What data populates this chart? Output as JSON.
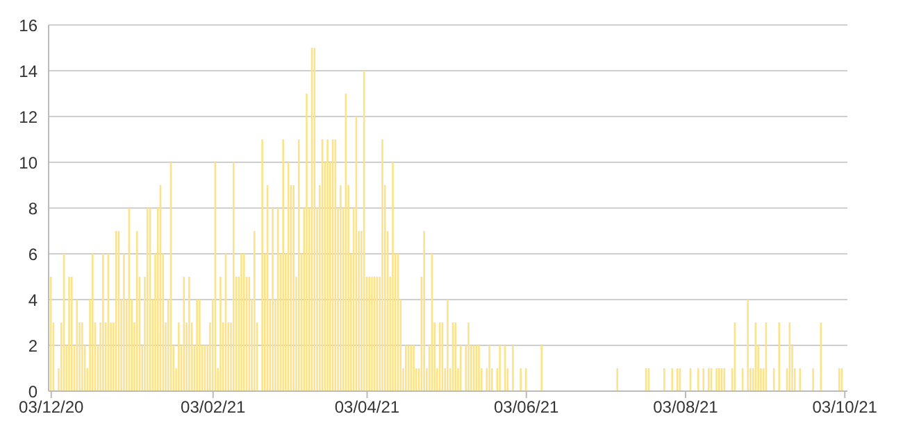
{
  "chart_data": {
    "type": "bar",
    "color": "#fce38a",
    "x": [
      "2020-12-03",
      "2020-12-04",
      "2020-12-05",
      "2020-12-06",
      "2020-12-07",
      "2020-12-08",
      "2020-12-09",
      "2020-12-10",
      "2020-12-11",
      "2020-12-12",
      "2020-12-13",
      "2020-12-14",
      "2020-12-15",
      "2020-12-16",
      "2020-12-17",
      "2020-12-18",
      "2020-12-19",
      "2020-12-20",
      "2020-12-21",
      "2020-12-22",
      "2020-12-23",
      "2020-12-24",
      "2020-12-25",
      "2020-12-26",
      "2020-12-27",
      "2020-12-28",
      "2020-12-29",
      "2020-12-30",
      "2020-12-31",
      "2021-01-01",
      "2021-01-02",
      "2021-01-03",
      "2021-01-04",
      "2021-01-05",
      "2021-01-06",
      "2021-01-07",
      "2021-01-08",
      "2021-01-09",
      "2021-01-10",
      "2021-01-11",
      "2021-01-12",
      "2021-01-13",
      "2021-01-14",
      "2021-01-15",
      "2021-01-16",
      "2021-01-17",
      "2021-01-18",
      "2021-01-19",
      "2021-01-20",
      "2021-01-21",
      "2021-01-22",
      "2021-01-23",
      "2021-01-24",
      "2021-01-25",
      "2021-01-26",
      "2021-01-27",
      "2021-01-28",
      "2021-01-29",
      "2021-01-30",
      "2021-01-31",
      "2021-02-01",
      "2021-02-02",
      "2021-02-03",
      "2021-02-04",
      "2021-02-05",
      "2021-02-06",
      "2021-02-07",
      "2021-02-08",
      "2021-02-09",
      "2021-02-10",
      "2021-02-11",
      "2021-02-12",
      "2021-02-13",
      "2021-02-14",
      "2021-02-15",
      "2021-02-16",
      "2021-02-17",
      "2021-02-18",
      "2021-02-19",
      "2021-02-20",
      "2021-02-21",
      "2021-02-22",
      "2021-02-23",
      "2021-02-24",
      "2021-02-25",
      "2021-02-26",
      "2021-02-27",
      "2021-02-28",
      "2021-03-01",
      "2021-03-02",
      "2021-03-03",
      "2021-03-04",
      "2021-03-05",
      "2021-03-06",
      "2021-03-07",
      "2021-03-08",
      "2021-03-09",
      "2021-03-10",
      "2021-03-11",
      "2021-03-12",
      "2021-03-13",
      "2021-03-14",
      "2021-03-15",
      "2021-03-16",
      "2021-03-17",
      "2021-03-18",
      "2021-03-19",
      "2021-03-20",
      "2021-03-21",
      "2021-03-22",
      "2021-03-23",
      "2021-03-24",
      "2021-03-25",
      "2021-03-26",
      "2021-03-27",
      "2021-03-28",
      "2021-03-29",
      "2021-03-30",
      "2021-03-31",
      "2021-04-01",
      "2021-04-02",
      "2021-04-03",
      "2021-04-04",
      "2021-04-05",
      "2021-04-06",
      "2021-04-07",
      "2021-04-08",
      "2021-04-09",
      "2021-04-10",
      "2021-04-11",
      "2021-04-12",
      "2021-04-13",
      "2021-04-14",
      "2021-04-15",
      "2021-04-16",
      "2021-04-17",
      "2021-04-18",
      "2021-04-19",
      "2021-04-20",
      "2021-04-21",
      "2021-04-22",
      "2021-04-23",
      "2021-04-24",
      "2021-04-25",
      "2021-04-26",
      "2021-04-27",
      "2021-04-28",
      "2021-04-29",
      "2021-04-30",
      "2021-05-01",
      "2021-05-02",
      "2021-05-03",
      "2021-05-04",
      "2021-05-05",
      "2021-05-06",
      "2021-05-07",
      "2021-05-08",
      "2021-05-09",
      "2021-05-10",
      "2021-05-11",
      "2021-05-12",
      "2021-05-13",
      "2021-05-14",
      "2021-05-15",
      "2021-05-16",
      "2021-05-17",
      "2021-05-18",
      "2021-05-19",
      "2021-05-20",
      "2021-05-21",
      "2021-05-22",
      "2021-05-23",
      "2021-05-24",
      "2021-05-25",
      "2021-05-26",
      "2021-05-27",
      "2021-05-28",
      "2021-05-29",
      "2021-05-30",
      "2021-05-31",
      "2021-06-01",
      "2021-06-03",
      "2021-06-09",
      "2021-07-08",
      "2021-07-19",
      "2021-07-20",
      "2021-07-26",
      "2021-07-29",
      "2021-07-31",
      "2021-08-01",
      "2021-08-05",
      "2021-08-08",
      "2021-08-10",
      "2021-08-12",
      "2021-08-13",
      "2021-08-15",
      "2021-08-16",
      "2021-08-17",
      "2021-08-18",
      "2021-08-21",
      "2021-08-22",
      "2021-08-25",
      "2021-08-27",
      "2021-08-28",
      "2021-08-29",
      "2021-08-30",
      "2021-08-31",
      "2021-09-01",
      "2021-09-02",
      "2021-09-03",
      "2021-09-06",
      "2021-09-08",
      "2021-09-11",
      "2021-09-12",
      "2021-09-13",
      "2021-09-14",
      "2021-09-16",
      "2021-09-21",
      "2021-09-24",
      "2021-10-01",
      "2021-10-02"
    ],
    "values": [
      5,
      3,
      0,
      1,
      3,
      6,
      2,
      5,
      5,
      2,
      4,
      3,
      3,
      2,
      1,
      4,
      6,
      3,
      2,
      3,
      6,
      3,
      6,
      3,
      3,
      7,
      7,
      4,
      6,
      4,
      8,
      4,
      3,
      7,
      5,
      2,
      5,
      8,
      8,
      4,
      6,
      8,
      9,
      6,
      3,
      4,
      10,
      2,
      1,
      3,
      2,
      5,
      3,
      5,
      3,
      2,
      4,
      4,
      2,
      2,
      2,
      3,
      4,
      10,
      1,
      5,
      3,
      6,
      3,
      3,
      10,
      5,
      5,
      6,
      6,
      5,
      5,
      4,
      7,
      3,
      0,
      11,
      6,
      9,
      4,
      8,
      4,
      8,
      6,
      11,
      6,
      10,
      9,
      9,
      5,
      11,
      6,
      8,
      13,
      8,
      15,
      15,
      8,
      9,
      11,
      10,
      11,
      10,
      11,
      11,
      8,
      9,
      8,
      13,
      9,
      6,
      8,
      12,
      7,
      7,
      14,
      5,
      5,
      5,
      5,
      5,
      5,
      11,
      9,
      7,
      5,
      10,
      6,
      6,
      4,
      1,
      2,
      2,
      2,
      2,
      1,
      1,
      5,
      7,
      1,
      2,
      6,
      3,
      1,
      3,
      3,
      1,
      4,
      1,
      3,
      3,
      1,
      2,
      0,
      2,
      3,
      2,
      2,
      2,
      2,
      1,
      0,
      1,
      2,
      1,
      0,
      1,
      2,
      0,
      2,
      1,
      0,
      2,
      0,
      0,
      1,
      1,
      2,
      1,
      1,
      1,
      1,
      1,
      1,
      1,
      1,
      1,
      1,
      1,
      1,
      1,
      1,
      1,
      1,
      1,
      3,
      1,
      4,
      1,
      1,
      3,
      2,
      1,
      1,
      3,
      1,
      3,
      1,
      3,
      2,
      1,
      1,
      1,
      3,
      1,
      1
    ],
    "xlim": [
      "2020-12-02",
      "2021-10-04"
    ],
    "xticks": [
      {
        "value": "2020-12-03",
        "label": "03/12/20"
      },
      {
        "value": "2021-02-03",
        "label": "03/02/21"
      },
      {
        "value": "2021-04-03",
        "label": "03/04/21"
      },
      {
        "value": "2021-06-03",
        "label": "03/06/21"
      },
      {
        "value": "2021-08-03",
        "label": "03/08/21"
      },
      {
        "value": "2021-10-03",
        "label": "03/10/21"
      }
    ],
    "ylim": [
      0,
      16
    ],
    "yticks": [
      0,
      2,
      4,
      6,
      8,
      10,
      12,
      14,
      16
    ],
    "grid": "y"
  }
}
